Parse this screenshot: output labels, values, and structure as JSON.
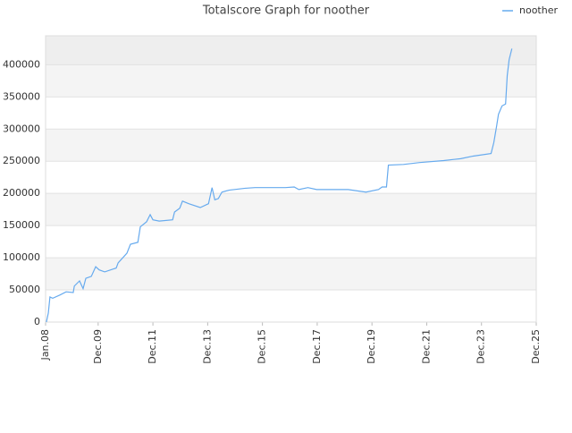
{
  "chart_data": {
    "type": "line",
    "title": "Totalscore Graph for noother",
    "legend": "top-right",
    "grid": true,
    "xlim": [
      2008,
      2025.92
    ],
    "ylim": [
      0,
      445000
    ],
    "xticks": [
      {
        "value": 2008,
        "label": "Jan.08"
      },
      {
        "value": 2009.92,
        "label": "Dec.09"
      },
      {
        "value": 2011.92,
        "label": "Dec.11"
      },
      {
        "value": 2013.92,
        "label": "Dec.13"
      },
      {
        "value": 2015.92,
        "label": "Dec.15"
      },
      {
        "value": 2017.92,
        "label": "Dec.17"
      },
      {
        "value": 2019.92,
        "label": "Dec.19"
      },
      {
        "value": 2021.92,
        "label": "Dec.21"
      },
      {
        "value": 2023.92,
        "label": "Dec.23"
      },
      {
        "value": 2025.92,
        "label": "Dec.25"
      }
    ],
    "yticks": [
      0,
      50000,
      100000,
      150000,
      200000,
      250000,
      300000,
      350000,
      400000
    ],
    "series": [
      {
        "name": "noother",
        "color": "#66aaee",
        "x": [
          2008.03,
          2008.1,
          2008.16,
          2008.26,
          2008.52,
          2008.75,
          2009.01,
          2009.05,
          2009.24,
          2009.37,
          2009.47,
          2009.67,
          2009.83,
          2009.96,
          2010.16,
          2010.58,
          2010.65,
          2010.97,
          2011.1,
          2011.37,
          2011.46,
          2011.69,
          2011.82,
          2011.92,
          2012.15,
          2012.64,
          2012.71,
          2012.9,
          2013.0,
          2013.23,
          2013.65,
          2013.95,
          2014.08,
          2014.18,
          2014.31,
          2014.44,
          2014.7,
          2015.29,
          2015.65,
          2016.76,
          2017.08,
          2017.25,
          2017.58,
          2017.9,
          2019.05,
          2019.7,
          2020.16,
          2020.29,
          2020.45,
          2020.52,
          2021.07,
          2021.66,
          2022.54,
          2023.16,
          2023.62,
          2024.27,
          2024.37,
          2024.47,
          2024.54,
          2024.67,
          2024.8,
          2024.86,
          2024.93,
          2025.03
        ],
        "values": [
          0,
          14000,
          39000,
          37000,
          42000,
          47000,
          46000,
          56000,
          64000,
          52000,
          68000,
          71000,
          86000,
          81000,
          78000,
          84000,
          92000,
          107000,
          121000,
          124000,
          148000,
          156000,
          167000,
          159000,
          157000,
          159000,
          171000,
          177000,
          188000,
          184000,
          178000,
          184000,
          209000,
          190000,
          192000,
          202000,
          205000,
          208000,
          209000,
          209000,
          210000,
          206000,
          209000,
          206000,
          206000,
          202000,
          206000,
          210000,
          210000,
          244000,
          245000,
          248000,
          251000,
          254000,
          258000,
          262000,
          279000,
          304000,
          323000,
          336000,
          339000,
          383000,
          408000,
          425000
        ]
      }
    ]
  }
}
